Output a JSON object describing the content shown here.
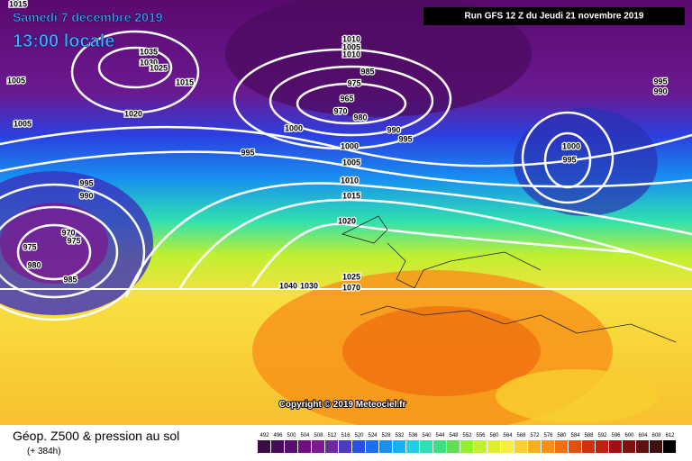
{
  "header": {
    "date": "Samedi 7 décembre 2019",
    "time": "13:00 locale",
    "run": "Run GFS 12 Z du Jeudi 21 novembre 2019"
  },
  "copyright": "Copyright © 2019 Meteociel.fr",
  "footer": {
    "title": "Géop. Z500 & pression au sol",
    "subtitle": "(+ 384h)"
  },
  "isobar_labels": [
    "1015",
    "1005",
    "1005",
    "1035",
    "1030",
    "1025",
    "1015",
    "1020",
    "1010",
    "1005",
    "1010",
    "985",
    "975",
    "965",
    "970",
    "980",
    "1000",
    "990",
    "995",
    "995",
    "1000",
    "1005",
    "1010",
    "1015",
    "1020",
    "995",
    "990",
    "970",
    "975",
    "975",
    "980",
    "985",
    "1040",
    "1030",
    "1025",
    "1070",
    "1000",
    "995",
    "995",
    "990"
  ],
  "legend": {
    "values": [
      492,
      496,
      500,
      504,
      508,
      512,
      516,
      520,
      524,
      528,
      532,
      536,
      540,
      544,
      548,
      552,
      556,
      560,
      564,
      568,
      572,
      576,
      580,
      584,
      588,
      592,
      596,
      600,
      604,
      608,
      612
    ],
    "colors": [
      "#3a0a48",
      "#4a0a5c",
      "#5c0c70",
      "#6e1080",
      "#7e1890",
      "#6a2aa0",
      "#4a3cc0",
      "#2a50e0",
      "#1a70f0",
      "#1890f0",
      "#18b0f0",
      "#20d0e0",
      "#30e0b0",
      "#40e080",
      "#60e050",
      "#90f030",
      "#c0f030",
      "#e0f030",
      "#f8f040",
      "#f8d030",
      "#f8b020",
      "#f89018",
      "#f07010",
      "#e05010",
      "#d03010",
      "#c02010",
      "#a01010",
      "#801010",
      "#601010",
      "#401010",
      "#000000"
    ]
  }
}
